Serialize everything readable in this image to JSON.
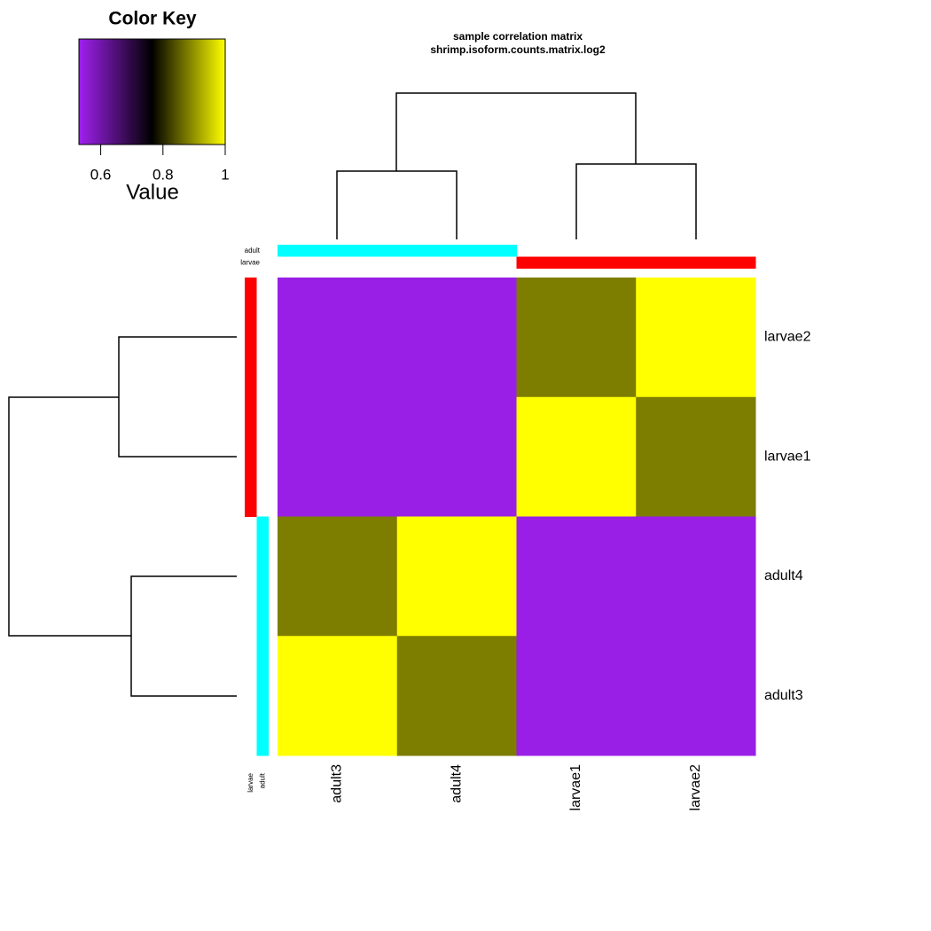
{
  "chart_data": {
    "type": "heatmap",
    "title": "sample correlation matrix",
    "subtitle": "shrimp.isoform.counts.matrix.log2",
    "rows": [
      "larvae2",
      "larvae1",
      "adult4",
      "adult3"
    ],
    "columns": [
      "adult3",
      "adult4",
      "larvae1",
      "larvae2"
    ],
    "values": [
      [
        0.54,
        0.54,
        0.88,
        1
      ],
      [
        0.54,
        0.54,
        1,
        0.88
      ],
      [
        0.88,
        1,
        0.54,
        0.54
      ],
      [
        1,
        0.88,
        0.54,
        0.54
      ]
    ],
    "colorscale": [
      "#A020F0",
      "#000000",
      "#FFFF00"
    ],
    "zlim": [
      0.53,
      1
    ],
    "color_key": {
      "title": "Color Key",
      "xlabel": "Value",
      "xticks": [
        0.6,
        0.8,
        1
      ]
    },
    "groups": [
      {
        "name": "adult",
        "color": "#00FFFF"
      },
      {
        "name": "larvae",
        "color": "#FF0000"
      }
    ],
    "column_groups": [
      0,
      0,
      1,
      1
    ],
    "row_groups": [
      1,
      1,
      0,
      0
    ]
  }
}
